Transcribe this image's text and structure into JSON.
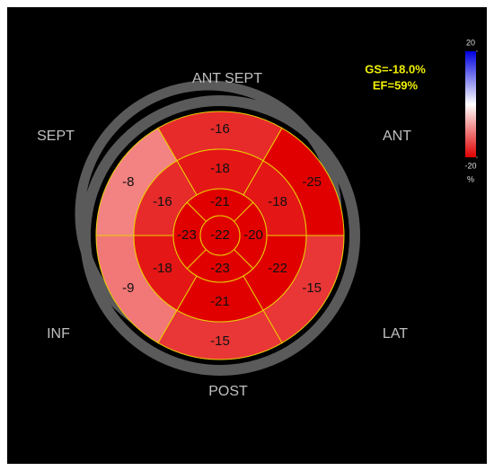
{
  "chart_data": {
    "type": "bullseye",
    "annotations": [
      "GS=-18.0%",
      "EF=59%"
    ],
    "orientation_labels": [
      "ANT SEPT",
      "SEPT",
      "ANT",
      "INF",
      "LAT",
      "POST"
    ],
    "basal": [
      -16,
      -25,
      -15,
      -15,
      -9,
      -8
    ],
    "mid": [
      -18,
      -18,
      -22,
      -21,
      -18,
      -16
    ],
    "apical": [
      -21,
      -20,
      -23,
      -23
    ],
    "apex": -22,
    "clim": [
      -20,
      20
    ],
    "cticks": [
      -20,
      20
    ],
    "colorbar_label": "%"
  }
}
